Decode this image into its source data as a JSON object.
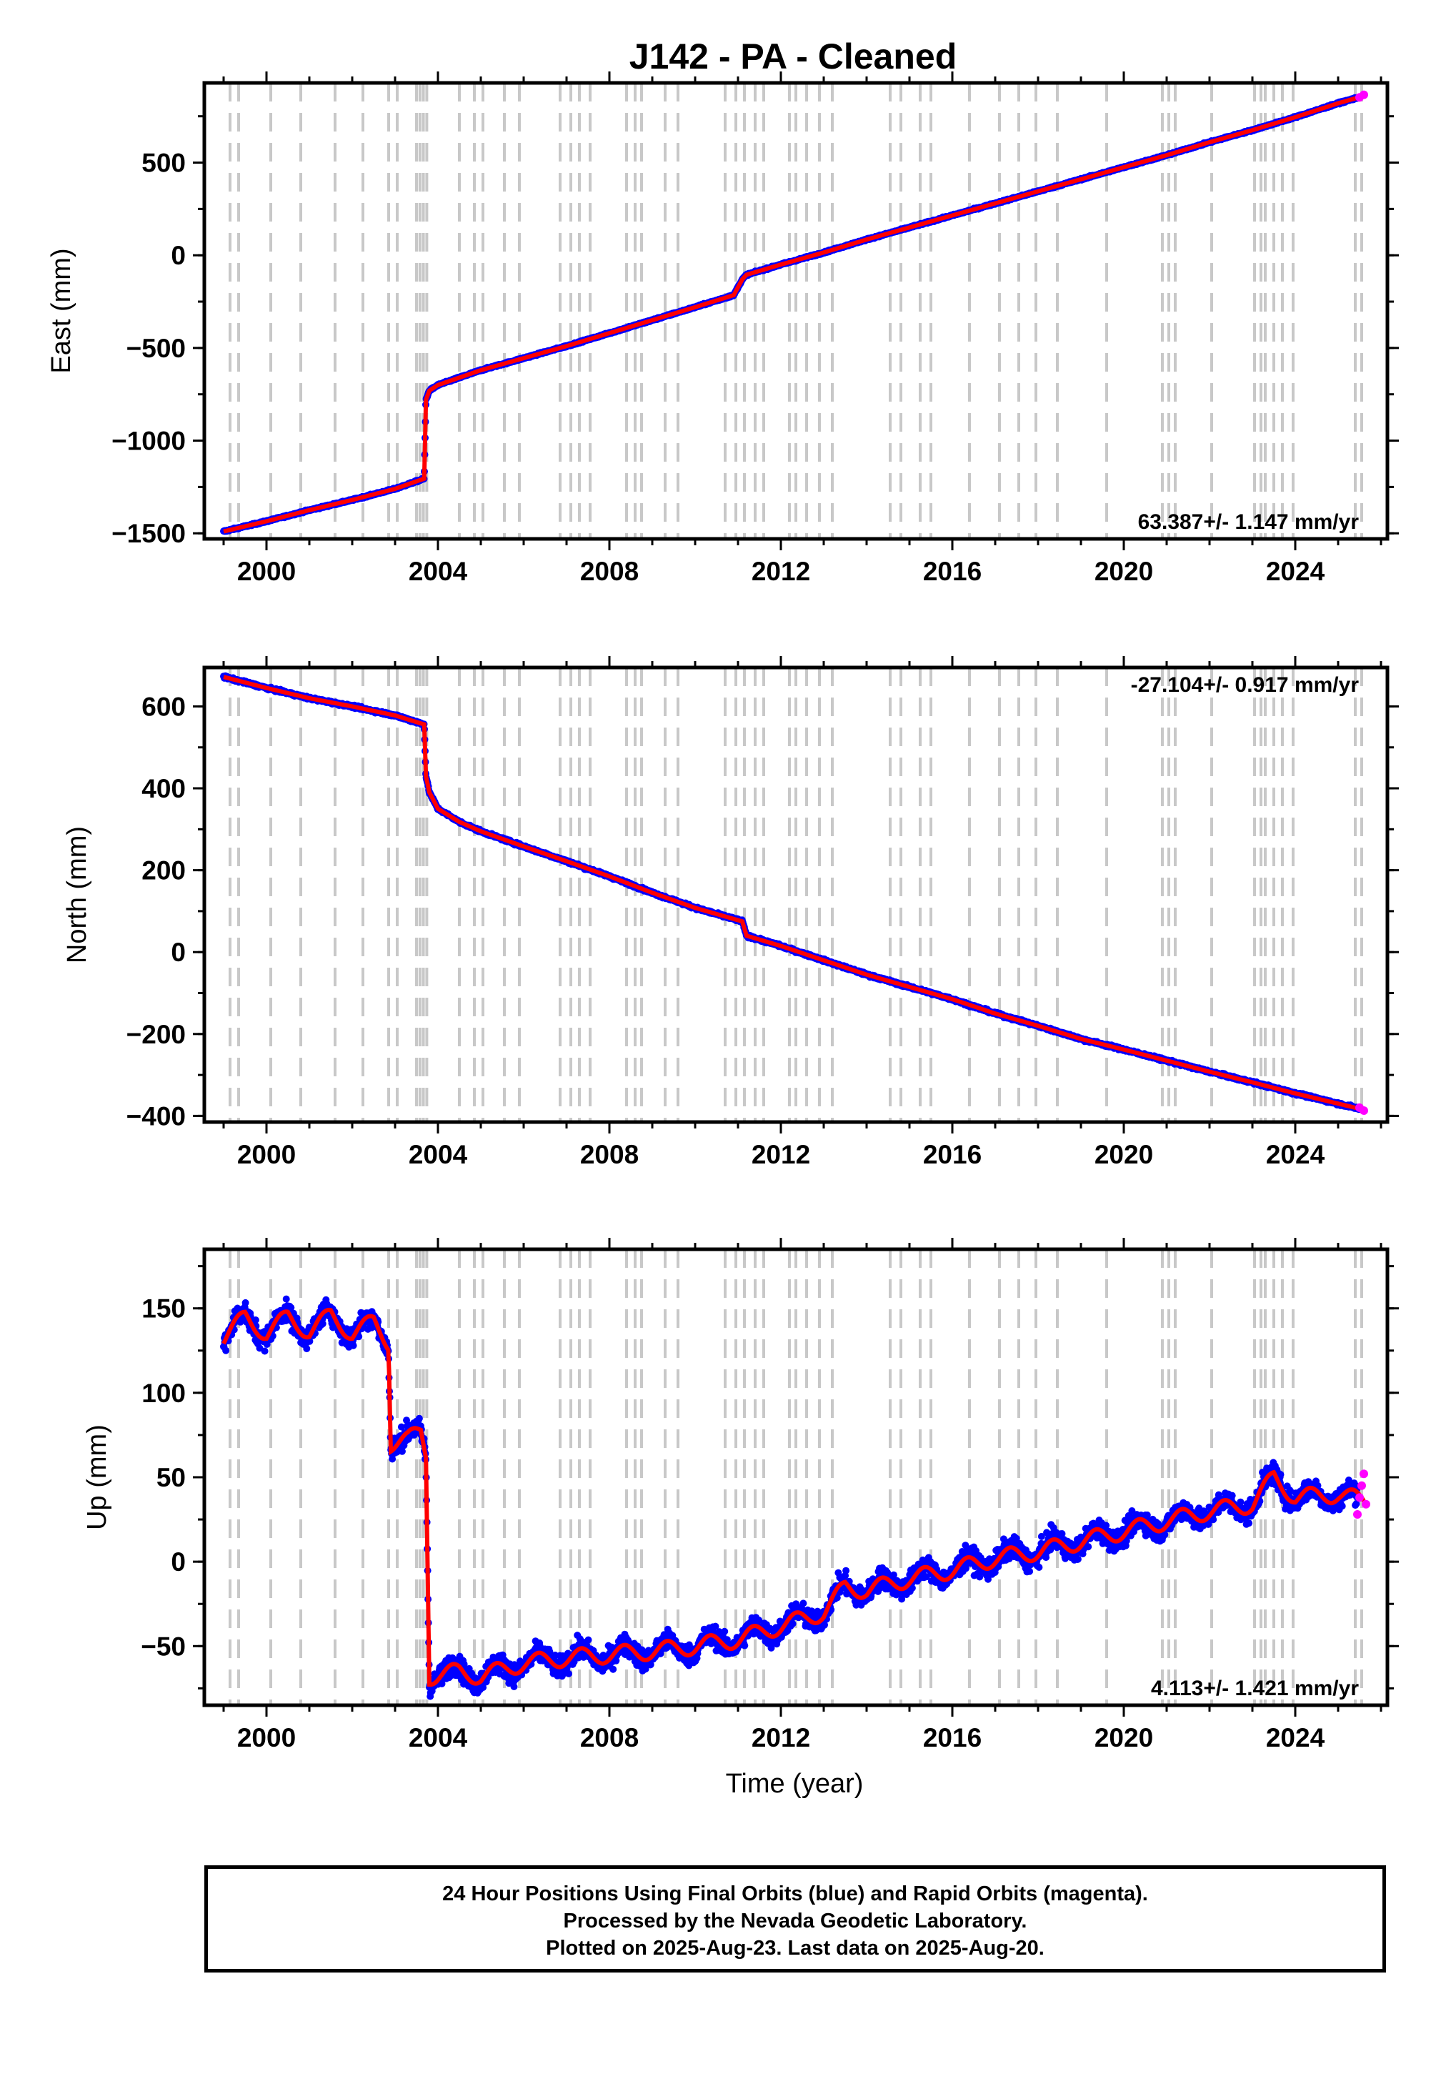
{
  "title": "J142  - PA - Cleaned",
  "xlabel": "Time (year)",
  "footer": {
    "line1": "24 Hour Positions Using Final Orbits (blue) and Rapid Orbits (magenta).",
    "line2": "Processed by the Nevada Geodetic Laboratory.",
    "line3": "Plotted on 2025-Aug-23. Last data on 2025-Aug-20."
  },
  "colors": {
    "final_orbits": "#0000ff",
    "rapid_orbits": "#ff00ff",
    "model_fit": "#ff0000",
    "event_lines": "#c8c8c8"
  },
  "chart_data": [
    {
      "type": "scatter",
      "name": "east",
      "ylabel": "East (mm)",
      "rate_label": "63.387+/- 1.147 mm/yr",
      "rate_position": "bottom-right",
      "xlim": [
        1998.55,
        2026.15
      ],
      "ylim": [
        -1530,
        930
      ],
      "xticks": [
        2000,
        2004,
        2008,
        2012,
        2016,
        2020,
        2024
      ],
      "yticks": [
        -1500,
        -1000,
        -500,
        0,
        500
      ],
      "ytick_labels": [
        "−1500",
        "−1000",
        "−500",
        "0",
        "500"
      ],
      "grid": false,
      "series": [
        {
          "name": "final",
          "x": [
            1999.0,
            2000.0,
            2001.0,
            2002.0,
            2003.0,
            2003.68,
            2003.72,
            2003.8,
            2004.0,
            2004.5,
            2005.0,
            2006.0,
            2007.0,
            2008.0,
            2009.0,
            2010.0,
            2010.9,
            2011.1,
            2011.2,
            2012.0,
            2013.0,
            2014.0,
            2015.0,
            2016.0,
            2017.0,
            2018.0,
            2019.0,
            2020.0,
            2021.0,
            2022.0,
            2023.0,
            2024.0,
            2025.0,
            2025.6
          ],
          "y": [
            -1490,
            -1435,
            -1375,
            -1320,
            -1260,
            -1205,
            -780,
            -730,
            -700,
            -660,
            -620,
            -555,
            -490,
            -420,
            -350,
            -280,
            -215,
            -130,
            -105,
            -50,
            15,
            85,
            150,
            215,
            280,
            345,
            410,
            475,
            540,
            610,
            675,
            745,
            820,
            860
          ]
        },
        {
          "name": "rapid",
          "x": [
            2025.5,
            2025.6
          ],
          "y": [
            852,
            866
          ]
        }
      ]
    },
    {
      "type": "scatter",
      "name": "north",
      "ylabel": "North (mm)",
      "rate_label": "-27.104+/- 0.917 mm/yr",
      "rate_position": "top-right",
      "xlim": [
        1998.55,
        2026.15
      ],
      "ylim": [
        -415,
        695
      ],
      "xticks": [
        2000,
        2004,
        2008,
        2012,
        2016,
        2020,
        2024
      ],
      "yticks": [
        -400,
        -200,
        0,
        200,
        400,
        600
      ],
      "ytick_labels": [
        "−400",
        "−200",
        "0",
        "200",
        "400",
        "600"
      ],
      "grid": false,
      "series": [
        {
          "name": "final",
          "x": [
            1999.0,
            2000.0,
            2001.0,
            2002.0,
            2003.0,
            2003.68,
            2003.72,
            2003.8,
            2004.0,
            2004.5,
            2005.0,
            2006.0,
            2007.0,
            2008.0,
            2009.0,
            2010.0,
            2011.1,
            2011.2,
            2012.0,
            2013.0,
            2014.0,
            2015.0,
            2016.0,
            2017.0,
            2018.0,
            2019.0,
            2020.0,
            2021.0,
            2022.0,
            2023.0,
            2024.0,
            2025.0,
            2025.6
          ],
          "y": [
            672,
            645,
            620,
            600,
            578,
            556,
            430,
            390,
            350,
            318,
            295,
            258,
            222,
            185,
            145,
            108,
            75,
            40,
            15,
            -20,
            -55,
            -85,
            -115,
            -150,
            -180,
            -212,
            -238,
            -265,
            -292,
            -318,
            -345,
            -370,
            -385
          ]
        },
        {
          "name": "rapid",
          "x": [
            2025.5,
            2025.6
          ],
          "y": [
            -380,
            -387
          ]
        }
      ]
    },
    {
      "type": "scatter",
      "name": "up",
      "ylabel": "Up (mm)",
      "rate_label": "4.113+/- 1.421 mm/yr",
      "rate_position": "bottom-right",
      "xlim": [
        1998.55,
        2026.15
      ],
      "ylim": [
        -85,
        185
      ],
      "xticks": [
        2000,
        2004,
        2008,
        2012,
        2016,
        2020,
        2024
      ],
      "yticks": [
        -50,
        0,
        50,
        100,
        150
      ],
      "ytick_labels": [
        "−50",
        "0",
        "50",
        "100",
        "150"
      ],
      "grid": false,
      "series": [
        {
          "name": "final",
          "x": [
            1999.0,
            1999.5,
            2000.0,
            2000.5,
            2001.0,
            2001.5,
            2002.0,
            2002.5,
            2002.85,
            2002.9,
            2003.3,
            2003.6,
            2003.72,
            2003.8,
            2004.5,
            2005.0,
            2006.0,
            2007.0,
            2008.0,
            2009.0,
            2010.0,
            2011.0,
            2012.0,
            2013.0,
            2013.5,
            2014.0,
            2015.0,
            2016.0,
            2017.0,
            2018.0,
            2019.0,
            2020.0,
            2021.0,
            2022.0,
            2023.0,
            2023.5,
            2024.0,
            2025.0,
            2025.6
          ],
          "y": [
            132,
            145,
            135,
            145,
            136,
            146,
            135,
            142,
            130,
            70,
            72,
            78,
            65,
            -68,
            -65,
            -68,
            -60,
            -57,
            -55,
            -53,
            -50,
            -46,
            -38,
            -30,
            -15,
            -17,
            -10,
            -5,
            2,
            6,
            12,
            18,
            24,
            30,
            34,
            50,
            38,
            40,
            36
          ]
        },
        {
          "name": "rapid",
          "x": [
            2025.45,
            2025.5,
            2025.55,
            2025.6,
            2025.65
          ],
          "y": [
            28,
            38,
            45,
            52,
            34
          ]
        }
      ]
    }
  ],
  "event_lines": [
    1999.15,
    1999.35,
    2000.1,
    2000.8,
    2001.6,
    2002.25,
    2002.85,
    2003.05,
    2003.5,
    2003.58,
    2003.66,
    2003.74,
    2004.5,
    2004.85,
    2005.05,
    2005.55,
    2005.9,
    2006.85,
    2007.1,
    2007.3,
    2007.55,
    2008.4,
    2008.6,
    2008.75,
    2009.3,
    2009.6,
    2010.7,
    2010.95,
    2011.15,
    2011.4,
    2011.6,
    2012.2,
    2012.35,
    2012.6,
    2012.9,
    2013.2,
    2014.55,
    2014.8,
    2015.25,
    2015.5,
    2016.4,
    2017.1,
    2017.55,
    2017.95,
    2018.45,
    2019.6,
    2020.9,
    2021.05,
    2021.2,
    2022.05,
    2023.05,
    2023.2,
    2023.3,
    2023.5,
    2023.7,
    2023.95,
    2025.4,
    2025.55
  ]
}
